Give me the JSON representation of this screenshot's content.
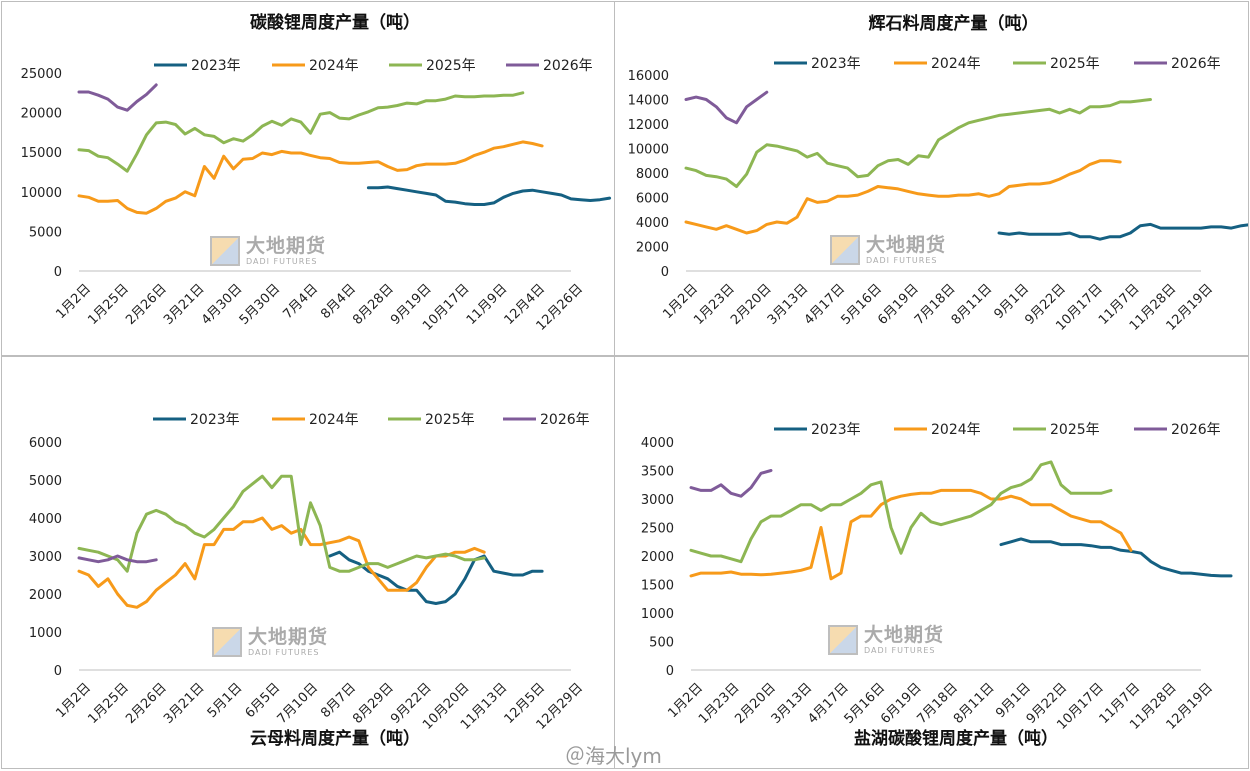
{
  "colors": {
    "2023": "#156082",
    "2024": "#F79A1A",
    "2025": "#8DB653",
    "2026": "#7F5B99"
  },
  "watermark": {
    "cn": "大地期货",
    "en": "DADI FUTURES"
  },
  "weibo_watermark": "＠海大lym",
  "chart_data": [
    {
      "type": "line",
      "title": "碳酸锂周度产量（吨）",
      "ylim": [
        0,
        25000
      ],
      "yticks": [
        0,
        5000,
        10000,
        15000,
        20000,
        25000
      ],
      "xlabels": [
        "1月2日",
        "1月25日",
        "2月26日",
        "3月21日",
        "4月30日",
        "5月30日",
        "7月4日",
        "8月4日",
        "8月28日",
        "9月19日",
        "10月17日",
        "11月9日",
        "12月4日",
        "12月26日"
      ],
      "series": [
        {
          "name": "2023年",
          "start": 30,
          "values": [
            10500,
            10500,
            10600,
            10400,
            10200,
            10000,
            9800,
            9600,
            8800,
            8700,
            8500,
            8400,
            8400,
            8600,
            9300,
            9800,
            10100,
            10200,
            10000,
            9800,
            9600,
            9100,
            9000,
            8900,
            9000,
            9200
          ]
        },
        {
          "name": "2024年",
          "start": 0,
          "values": [
            9500,
            9300,
            8800,
            8800,
            8900,
            7900,
            7400,
            7300,
            7900,
            8800,
            9200,
            10000,
            9500,
            13200,
            11700,
            14500,
            12900,
            14100,
            14200,
            14900,
            14700,
            15100,
            14900,
            14900,
            14600,
            14300,
            14200,
            13700,
            13600,
            13600,
            13700,
            13800,
            13200,
            12700,
            12800,
            13300,
            13500,
            13500,
            13500,
            13600,
            14000,
            14600,
            15000,
            15500,
            15700,
            16000,
            16300,
            16100,
            15800
          ]
        },
        {
          "name": "2025年",
          "start": 0,
          "values": [
            15300,
            15200,
            14500,
            14300,
            13500,
            12600,
            14800,
            17200,
            18700,
            18800,
            18500,
            17300,
            18000,
            17200,
            17000,
            16200,
            16700,
            16400,
            17200,
            18300,
            18900,
            18400,
            19200,
            18800,
            17400,
            19800,
            20000,
            19300,
            19200,
            19700,
            20100,
            20600,
            20700,
            20900,
            21200,
            21100,
            21500,
            21500,
            21700,
            22100,
            22000,
            22000,
            22100,
            22100,
            22200,
            22200,
            22500
          ]
        },
        {
          "name": "2026年",
          "start": 0,
          "values": [
            22600,
            22600,
            22200,
            21700,
            20700,
            20300,
            21400,
            22300,
            23500
          ]
        }
      ]
    },
    {
      "type": "line",
      "title": "辉石料周度产量（吨）",
      "ylim": [
        0,
        16000
      ],
      "yticks": [
        0,
        2000,
        4000,
        6000,
        8000,
        10000,
        12000,
        14000,
        16000
      ],
      "xlabels": [
        "1月2日",
        "1月23日",
        "2月20日",
        "3月13日",
        "4月17日",
        "5月16日",
        "6月19日",
        "7月18日",
        "8月11日",
        "9月1日",
        "9月22日",
        "10月17日",
        "11月7日",
        "11月28日",
        "12月19日"
      ],
      "series": [
        {
          "name": "2023年",
          "start": 31,
          "values": [
            3100,
            3000,
            3100,
            3000,
            3000,
            3000,
            3000,
            3100,
            2800,
            2800,
            2600,
            2800,
            2800,
            3100,
            3700,
            3800,
            3500,
            3500,
            3500,
            3500,
            3500,
            3600,
            3600,
            3500,
            3700,
            3800
          ]
        },
        {
          "name": "2024年",
          "start": 0,
          "values": [
            4000,
            3800,
            3600,
            3400,
            3700,
            3400,
            3100,
            3300,
            3800,
            4000,
            3900,
            4400,
            5900,
            5600,
            5700,
            6100,
            6100,
            6200,
            6500,
            6900,
            6800,
            6700,
            6500,
            6300,
            6200,
            6100,
            6100,
            6200,
            6200,
            6300,
            6100,
            6300,
            6900,
            7000,
            7100,
            7100,
            7200,
            7500,
            7900,
            8200,
            8700,
            9000,
            9000,
            8900
          ]
        },
        {
          "name": "2025年",
          "start": 0,
          "values": [
            8400,
            8200,
            7800,
            7700,
            7500,
            6900,
            7900,
            9700,
            10300,
            10200,
            10000,
            9800,
            9300,
            9600,
            8800,
            8600,
            8400,
            7700,
            7800,
            8600,
            9000,
            9100,
            8700,
            9400,
            9300,
            10700,
            11200,
            11700,
            12100,
            12300,
            12500,
            12700,
            12800,
            12900,
            13000,
            13100,
            13200,
            12900,
            13200,
            12900,
            13400,
            13400,
            13500,
            13800,
            13800,
            13900,
            14000
          ]
        },
        {
          "name": "2026年",
          "start": 0,
          "values": [
            14000,
            14200,
            14000,
            13400,
            12500,
            12100,
            13400,
            14000,
            14600
          ]
        }
      ]
    },
    {
      "type": "line",
      "title": "云母料周度产量（吨）",
      "ylim": [
        0,
        6000
      ],
      "yticks": [
        0,
        1000,
        2000,
        3000,
        4000,
        5000,
        6000
      ],
      "xlabels": [
        "1月2日",
        "1月25日",
        "2月26日",
        "3月21日",
        "5月1日",
        "6月5日",
        "7月10日",
        "8月7日",
        "8月29日",
        "9月22日",
        "10月20日",
        "11月13日",
        "12月5日",
        "12月29日"
      ],
      "series": [
        {
          "name": "2023年",
          "start": 26,
          "values": [
            3000,
            3100,
            2900,
            2800,
            2600,
            2500,
            2400,
            2200,
            2100,
            2100,
            1800,
            1750,
            1800,
            2000,
            2400,
            2900,
            3000,
            2600,
            2550,
            2500,
            2500,
            2600,
            2600
          ]
        },
        {
          "name": "2024年",
          "start": 0,
          "values": [
            2600,
            2500,
            2200,
            2400,
            2000,
            1700,
            1650,
            1800,
            2100,
            2300,
            2500,
            2800,
            2400,
            3300,
            3300,
            3700,
            3700,
            3900,
            3900,
            4000,
            3700,
            3800,
            3600,
            3700,
            3300,
            3300,
            3350,
            3400,
            3500,
            3400,
            2700,
            2400,
            2100,
            2100,
            2100,
            2300,
            2700,
            3000,
            3000,
            3100,
            3100,
            3200,
            3100
          ]
        },
        {
          "name": "2025年",
          "start": 0,
          "values": [
            3200,
            3150,
            3100,
            3000,
            2900,
            2600,
            3600,
            4100,
            4200,
            4100,
            3900,
            3800,
            3600,
            3500,
            3700,
            4000,
            4300,
            4700,
            4900,
            5100,
            4800,
            5100,
            5100,
            3300,
            4400,
            3800,
            2700,
            2600,
            2600,
            2700,
            2800,
            2800,
            2700,
            2800,
            2900,
            3000,
            2950,
            3000,
            3050,
            3000,
            2900,
            2900,
            2950
          ]
        },
        {
          "name": "2026年",
          "start": 0,
          "values": [
            2950,
            2900,
            2850,
            2900,
            3000,
            2900,
            2850,
            2850,
            2900
          ]
        }
      ]
    },
    {
      "type": "line",
      "title": "盐湖碳酸锂周度产量（吨）",
      "ylim": [
        0,
        4000
      ],
      "yticks": [
        0,
        500,
        1000,
        1500,
        2000,
        2500,
        3000,
        3500,
        4000
      ],
      "xlabels": [
        "1月2日",
        "1月23日",
        "2月20日",
        "3月13日",
        "4月17日",
        "5月16日",
        "6月19日",
        "7月18日",
        "8月11日",
        "9月1日",
        "9月22日",
        "10月17日",
        "11月7日",
        "11月28日",
        "12月19日"
      ],
      "series": [
        {
          "name": "2023年",
          "start": 31,
          "values": [
            2200,
            2250,
            2300,
            2250,
            2250,
            2250,
            2200,
            2200,
            2200,
            2180,
            2150,
            2150,
            2100,
            2080,
            2050,
            1900,
            1800,
            1750,
            1700,
            1700,
            1680,
            1660,
            1650,
            1650
          ]
        },
        {
          "name": "2024年",
          "start": 0,
          "values": [
            1650,
            1700,
            1700,
            1700,
            1720,
            1680,
            1680,
            1670,
            1680,
            1700,
            1720,
            1750,
            1800,
            2500,
            1600,
            1700,
            2600,
            2700,
            2700,
            2900,
            3000,
            3050,
            3080,
            3100,
            3100,
            3150,
            3150,
            3150,
            3150,
            3100,
            3000,
            3000,
            3050,
            3000,
            2900,
            2900,
            2900,
            2800,
            2700,
            2650,
            2600,
            2600,
            2500,
            2400,
            2100
          ]
        },
        {
          "name": "2025年",
          "start": 0,
          "values": [
            2100,
            2050,
            2000,
            2000,
            1950,
            1900,
            2300,
            2600,
            2700,
            2700,
            2800,
            2900,
            2900,
            2800,
            2900,
            2900,
            3000,
            3100,
            3250,
            3300,
            2500,
            2050,
            2500,
            2750,
            2600,
            2550,
            2600,
            2650,
            2700,
            2800,
            2900,
            3100,
            3200,
            3250,
            3350,
            3600,
            3650,
            3250,
            3100,
            3100,
            3100,
            3100,
            3150
          ]
        },
        {
          "name": "2026年",
          "start": 0,
          "values": [
            3200,
            3150,
            3150,
            3250,
            3100,
            3050,
            3200,
            3450,
            3500
          ]
        }
      ]
    }
  ]
}
